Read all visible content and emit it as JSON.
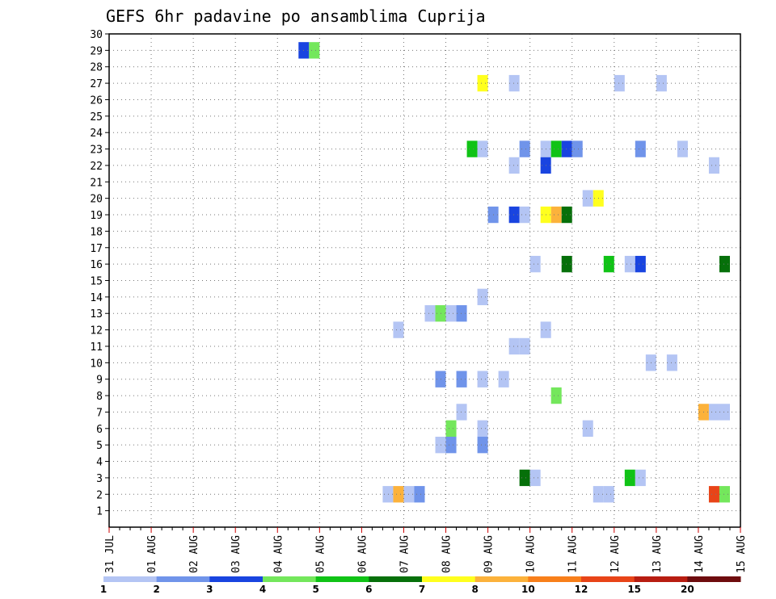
{
  "chart_data": {
    "type": "heatmap",
    "title": "GEFS 6hr padavine po ansamblima Cuprija",
    "xlabel": "",
    "ylabel": "",
    "x_tick_labels": [
      "31 JUL",
      "01 AUG",
      "02 AUG",
      "03 AUG",
      "04 AUG",
      "05 AUG",
      "06 AUG",
      "07 AUG",
      "08 AUG",
      "09 AUG",
      "10 AUG",
      "11 AUG",
      "12 AUG",
      "13 AUG",
      "14 AUG",
      "15 AUG"
    ],
    "xlim_days": [
      0,
      15
    ],
    "ylim": [
      0,
      30
    ],
    "y_ticks": [
      1,
      2,
      3,
      4,
      5,
      6,
      7,
      8,
      9,
      10,
      11,
      12,
      13,
      14,
      15,
      16,
      17,
      18,
      19,
      20,
      21,
      22,
      23,
      24,
      25,
      26,
      27,
      28,
      29,
      30
    ],
    "grid": "dotted",
    "time_step_hours": 6,
    "colorbar": {
      "levels": [
        "1",
        "2",
        "3",
        "4",
        "5",
        "6",
        "7",
        "8",
        "10",
        "12",
        "15",
        "20"
      ],
      "colors": [
        "#b4c5f4",
        "#7094ea",
        "#1944e0",
        "#74e75c",
        "#10c316",
        "#06700a",
        "#ffff1e",
        "#fcb23b",
        "#f87f1a",
        "#e84418",
        "#b81d11",
        "#6e0c0e"
      ]
    },
    "cells": [
      {
        "member": 29,
        "step": 19,
        "cls": 3
      },
      {
        "member": 29,
        "step": 20,
        "cls": 4
      },
      {
        "member": 27,
        "step": 36,
        "cls": 7
      },
      {
        "member": 27,
        "step": 39,
        "cls": 1
      },
      {
        "member": 27,
        "step": 49,
        "cls": 1
      },
      {
        "member": 27,
        "step": 53,
        "cls": 1
      },
      {
        "member": 23,
        "step": 35,
        "cls": 5
      },
      {
        "member": 23,
        "step": 36,
        "cls": 1
      },
      {
        "member": 23,
        "step": 40,
        "cls": 2
      },
      {
        "member": 23,
        "step": 42,
        "cls": 1
      },
      {
        "member": 23,
        "step": 43,
        "cls": 5
      },
      {
        "member": 23,
        "step": 44,
        "cls": 3
      },
      {
        "member": 23,
        "step": 45,
        "cls": 2
      },
      {
        "member": 23,
        "step": 51,
        "cls": 2
      },
      {
        "member": 23,
        "step": 55,
        "cls": 1
      },
      {
        "member": 22,
        "step": 39,
        "cls": 1
      },
      {
        "member": 22,
        "step": 42,
        "cls": 3
      },
      {
        "member": 22,
        "step": 58,
        "cls": 1
      },
      {
        "member": 20,
        "step": 46,
        "cls": 1
      },
      {
        "member": 20,
        "step": 47,
        "cls": 7
      },
      {
        "member": 19,
        "step": 37,
        "cls": 2
      },
      {
        "member": 19,
        "step": 39,
        "cls": 3
      },
      {
        "member": 19,
        "step": 40,
        "cls": 1
      },
      {
        "member": 19,
        "step": 42,
        "cls": 7
      },
      {
        "member": 19,
        "step": 43,
        "cls": 8
      },
      {
        "member": 19,
        "step": 44,
        "cls": 6
      },
      {
        "member": 16,
        "step": 41,
        "cls": 1
      },
      {
        "member": 16,
        "step": 44,
        "cls": 6
      },
      {
        "member": 16,
        "step": 48,
        "cls": 5
      },
      {
        "member": 16,
        "step": 50,
        "cls": 1
      },
      {
        "member": 16,
        "step": 51,
        "cls": 3
      },
      {
        "member": 16,
        "step": 59,
        "cls": 6
      },
      {
        "member": 14,
        "step": 36,
        "cls": 1
      },
      {
        "member": 13,
        "step": 31,
        "cls": 1
      },
      {
        "member": 13,
        "step": 32,
        "cls": 4
      },
      {
        "member": 13,
        "step": 33,
        "cls": 1
      },
      {
        "member": 13,
        "step": 34,
        "cls": 2
      },
      {
        "member": 12,
        "step": 28,
        "cls": 1
      },
      {
        "member": 12,
        "step": 42,
        "cls": 1
      },
      {
        "member": 11,
        "step": 39,
        "cls": 1
      },
      {
        "member": 11,
        "step": 40,
        "cls": 1
      },
      {
        "member": 10,
        "step": 52,
        "cls": 1
      },
      {
        "member": 10,
        "step": 54,
        "cls": 1
      },
      {
        "member": 9,
        "step": 32,
        "cls": 2
      },
      {
        "member": 9,
        "step": 34,
        "cls": 2
      },
      {
        "member": 9,
        "step": 36,
        "cls": 1
      },
      {
        "member": 9,
        "step": 38,
        "cls": 1
      },
      {
        "member": 8,
        "step": 43,
        "cls": 4
      },
      {
        "member": 7,
        "step": 34,
        "cls": 1
      },
      {
        "member": 7,
        "step": 57,
        "cls": 8
      },
      {
        "member": 7,
        "step": 58,
        "cls": 1
      },
      {
        "member": 7,
        "step": 59,
        "cls": 1
      },
      {
        "member": 6,
        "step": 33,
        "cls": 4
      },
      {
        "member": 6,
        "step": 36,
        "cls": 1
      },
      {
        "member": 6,
        "step": 46,
        "cls": 1
      },
      {
        "member": 5,
        "step": 32,
        "cls": 1
      },
      {
        "member": 5,
        "step": 33,
        "cls": 2
      },
      {
        "member": 5,
        "step": 36,
        "cls": 2
      },
      {
        "member": 3,
        "step": 40,
        "cls": 6
      },
      {
        "member": 3,
        "step": 41,
        "cls": 1
      },
      {
        "member": 3,
        "step": 50,
        "cls": 5
      },
      {
        "member": 3,
        "step": 51,
        "cls": 1
      },
      {
        "member": 2,
        "step": 27,
        "cls": 1
      },
      {
        "member": 2,
        "step": 28,
        "cls": 8
      },
      {
        "member": 2,
        "step": 29,
        "cls": 1
      },
      {
        "member": 2,
        "step": 30,
        "cls": 2
      },
      {
        "member": 2,
        "step": 47,
        "cls": 1
      },
      {
        "member": 2,
        "step": 48,
        "cls": 1
      },
      {
        "member": 2,
        "step": 58,
        "cls": 10
      },
      {
        "member": 2,
        "step": 59,
        "cls": 4
      }
    ]
  }
}
